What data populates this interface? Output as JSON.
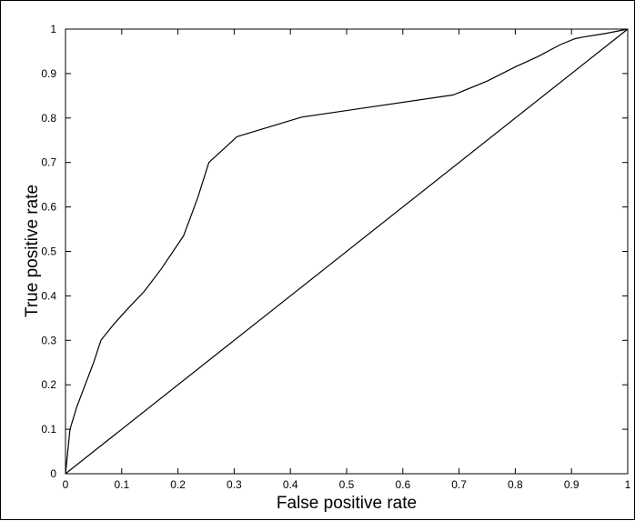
{
  "chart_data": {
    "type": "line",
    "title": "",
    "xlabel": "False positive rate",
    "ylabel": "True positive rate",
    "xlim": [
      0,
      1
    ],
    "ylim": [
      0,
      1
    ],
    "grid": false,
    "legend": "none",
    "x_ticks": [
      "0",
      "0.1",
      "0.2",
      "0.3",
      "0.4",
      "0.5",
      "0.6",
      "0.7",
      "0.8",
      "0.9",
      "1"
    ],
    "y_ticks": [
      "0",
      "0.1",
      "0.2",
      "0.3",
      "0.4",
      "0.5",
      "0.6",
      "0.7",
      "0.8",
      "0.9",
      "1"
    ],
    "series": [
      {
        "x": [
          0,
          0.008,
          0.02,
          0.035,
          0.05,
          0.063,
          0.085,
          0.11,
          0.14,
          0.17,
          0.21,
          0.235,
          0.255,
          0.305,
          0.42,
          0.69,
          0.75,
          0.8,
          0.84,
          0.88,
          0.905,
          0.92,
          0.96,
          1.0
        ],
        "y": [
          0,
          0.1,
          0.15,
          0.2,
          0.25,
          0.3,
          0.335,
          0.37,
          0.41,
          0.46,
          0.535,
          0.62,
          0.7,
          0.758,
          0.802,
          0.852,
          0.883,
          0.915,
          0.938,
          0.965,
          0.978,
          0.982,
          0.99,
          1.0
        ],
        "color": "#000000"
      },
      {
        "x": [
          0,
          1
        ],
        "y": [
          0,
          1
        ],
        "color": "#000000"
      }
    ]
  }
}
